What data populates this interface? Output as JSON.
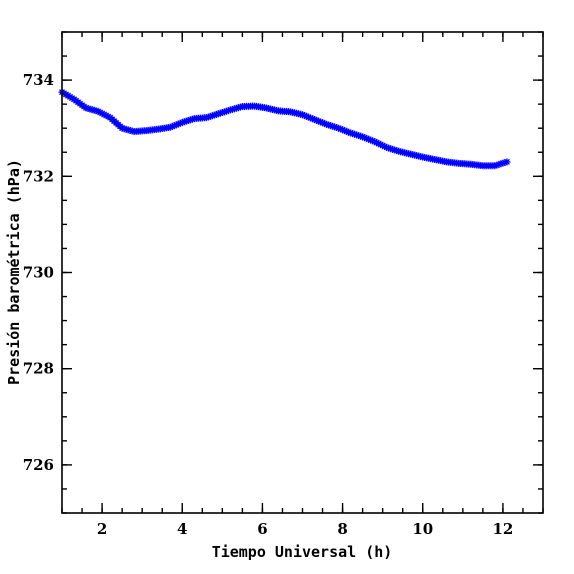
{
  "chart_data": {
    "type": "scatter",
    "title": "",
    "xlabel": "Tiempo Universal (h)",
    "ylabel": "Presión barométrica (hPa)",
    "xlim": [
      1,
      13
    ],
    "ylim": [
      725,
      735
    ],
    "xticks_major": [
      2,
      4,
      6,
      8,
      10,
      12
    ],
    "xticks_minor_step": 0.5,
    "yticks_major": [
      726,
      728,
      730,
      732,
      734
    ],
    "yticks_minor_step": 0.5,
    "grid": false,
    "marker": "star",
    "color": "#0000ff",
    "series": [
      {
        "x": [
          1.0,
          1.3,
          1.6,
          1.9,
          2.2,
          2.5,
          2.8,
          3.1,
          3.4,
          3.7,
          4.0,
          4.3,
          4.6,
          4.9,
          5.2,
          5.5,
          5.8,
          6.1,
          6.4,
          6.7,
          7.0,
          7.3,
          7.6,
          7.9,
          8.2,
          8.5,
          8.8,
          9.1,
          9.4,
          9.7,
          10.0,
          10.3,
          10.6,
          10.9,
          11.2,
          11.5,
          11.8,
          12.1
        ],
        "y": [
          733.75,
          733.6,
          733.42,
          733.35,
          733.22,
          733.0,
          732.93,
          732.95,
          732.98,
          733.02,
          733.12,
          733.2,
          733.22,
          733.3,
          733.38,
          733.45,
          733.46,
          733.42,
          733.36,
          733.34,
          733.28,
          733.18,
          733.08,
          733.0,
          732.9,
          732.82,
          732.72,
          732.6,
          732.52,
          732.46,
          732.4,
          732.35,
          732.3,
          732.27,
          732.25,
          732.22,
          732.22,
          732.3
        ]
      }
    ]
  }
}
